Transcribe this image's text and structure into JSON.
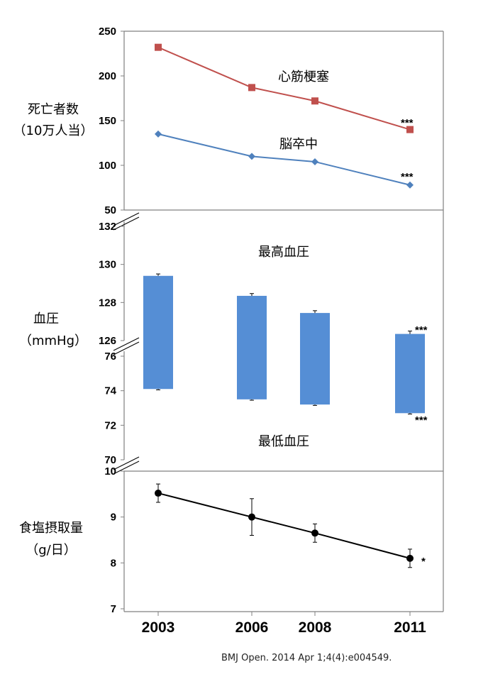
{
  "source": "BMJ Open. 2014 Apr 1;4(4):e004549.",
  "chart_data": [
    {
      "type": "line",
      "ylabel": [
        "死亡者数",
        "（10万人当）"
      ],
      "x": [
        2003,
        2006,
        2008,
        2011
      ],
      "ylim": [
        50,
        250
      ],
      "yticks": [
        50,
        100,
        150,
        200,
        250
      ],
      "series": [
        {
          "name": "心筋梗塞",
          "color": "#c0504d",
          "marker": "square",
          "values": [
            232,
            187,
            172,
            140
          ],
          "significance": "***"
        },
        {
          "name": "脳卒中",
          "color": "#4f81bd",
          "marker": "diamond",
          "values": [
            135,
            110,
            104,
            78
          ],
          "significance": "***"
        }
      ]
    },
    {
      "type": "bar",
      "ylabel": [
        "血圧",
        "（mmHg）"
      ],
      "x": [
        2003,
        2006,
        2008,
        2011
      ],
      "color": "#558ed5",
      "systolic": {
        "label": "最高血圧",
        "ylim": [
          126,
          132
        ],
        "yticks": [
          126,
          128,
          130,
          132
        ],
        "values": [
          129.4,
          128.35,
          127.45,
          126.35
        ],
        "errors": [
          0.1,
          0.12,
          0.12,
          0.15
        ],
        "significance": "***"
      },
      "diastolic": {
        "label": "最低血圧",
        "ylim": [
          70,
          76
        ],
        "yticks": [
          70,
          72,
          74,
          76
        ],
        "values": [
          74.1,
          73.5,
          73.2,
          72.7
        ],
        "errors": [
          0.05,
          0.05,
          0.05,
          0.05
        ],
        "significance": "***"
      }
    },
    {
      "type": "line",
      "ylabel": [
        "食塩摂取量",
        "（g/日）"
      ],
      "x": [
        2003,
        2006,
        2008,
        2011
      ],
      "ylim": [
        7,
        10
      ],
      "yticks": [
        7,
        8,
        9,
        10
      ],
      "series": [
        {
          "color": "#000000",
          "marker": "circle",
          "values": [
            9.52,
            9.0,
            8.65,
            8.1
          ],
          "errors": [
            0.2,
            0.4,
            0.2,
            0.2
          ],
          "significance": "*"
        }
      ],
      "xtick_labels": [
        "2003",
        "2006",
        "2008",
        "2011"
      ]
    }
  ]
}
